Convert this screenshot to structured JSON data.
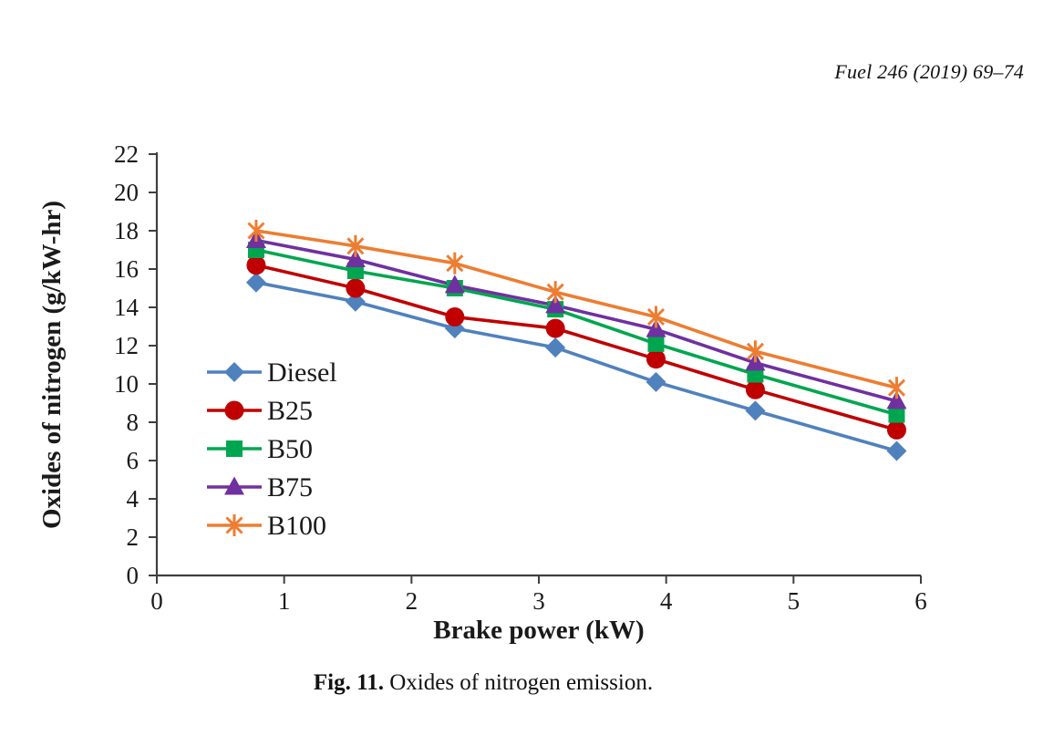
{
  "header": {
    "journal_ref": "Fuel 246 (2019) 69–74"
  },
  "caption": {
    "label": "Fig. 11.",
    "text": " Oxides of nitrogen emission."
  },
  "chart_data": {
    "type": "line",
    "title": "",
    "xlabel": "Brake power (kW)",
    "ylabel": "Oxides of nitrogen (g/kW-hr)",
    "xlim": [
      0,
      6
    ],
    "ylim": [
      0,
      22
    ],
    "xticks": [
      0,
      1,
      2,
      3,
      4,
      5,
      6
    ],
    "yticks": [
      0,
      2,
      4,
      6,
      8,
      10,
      12,
      14,
      16,
      18,
      20,
      22
    ],
    "grid": false,
    "legend_position": "inside-left",
    "axis_color": "#3f3f3f",
    "text_color": "#1a1a1a",
    "x": [
      0.78,
      1.56,
      2.34,
      3.13,
      3.92,
      4.7,
      5.81
    ],
    "series": [
      {
        "name": "Diesel",
        "color": "#4f81bd",
        "marker": "diamond",
        "values": [
          15.3,
          14.3,
          12.9,
          11.9,
          10.1,
          8.6,
          6.5
        ]
      },
      {
        "name": "B25",
        "color": "#c00000",
        "marker": "circle",
        "values": [
          16.2,
          15.0,
          13.5,
          12.9,
          11.3,
          9.7,
          7.6
        ]
      },
      {
        "name": "B50",
        "color": "#00a64f",
        "marker": "square",
        "values": [
          17.0,
          15.9,
          15.0,
          13.9,
          12.1,
          10.5,
          8.4
        ]
      },
      {
        "name": "B75",
        "color": "#7030a0",
        "marker": "triangle",
        "values": [
          17.5,
          16.5,
          15.15,
          14.1,
          12.85,
          11.1,
          9.1
        ]
      },
      {
        "name": "B100",
        "color": "#ed7d31",
        "marker": "star",
        "values": [
          18.0,
          17.2,
          16.3,
          14.8,
          13.5,
          11.7,
          9.8
        ]
      }
    ]
  }
}
